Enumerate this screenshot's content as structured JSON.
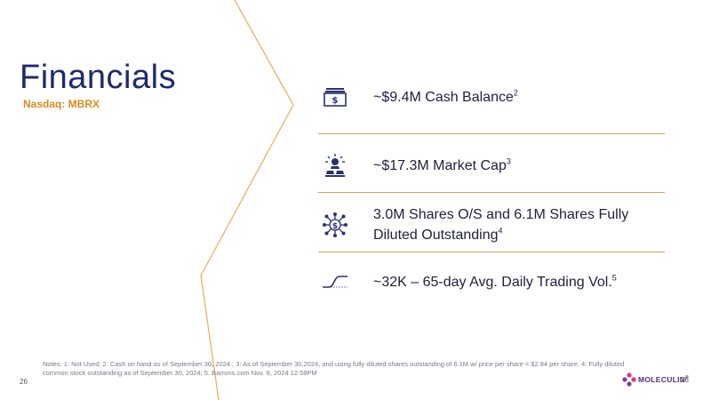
{
  "slide": {
    "title": "Financials",
    "subtitle": "Nasdaq: MBRX",
    "page_number": "26",
    "page_number_right": "26"
  },
  "metrics": [
    {
      "icon": "cash-icon",
      "text": "~$9.4M Cash Balance",
      "footnote": "2"
    },
    {
      "icon": "gold-bars-icon",
      "text": "~$17.3M Market Cap",
      "footnote": "3"
    },
    {
      "icon": "network-dollar-icon",
      "text_line1": "3.0M Shares O/S and 6.1M Shares Fully",
      "text_line2": "Diluted Outstanding",
      "footnote": "4"
    },
    {
      "icon": "trend-curve-icon",
      "text": "~32K – 65-day Avg. Daily Trading Vol.",
      "footnote": "5"
    }
  ],
  "notes": "Notes: 1: Not Used; 2: Cash on hand as of  September 30, 2024 ; 3: As of September 30,2024, and using fully diluted shares outstanding of 6.1M w/ price per share = $2.84 per share; 4: Fully diluted common stock outstanding as of September 30, 2024; 5. Barrons.com Nov. 8, 2024 12:58PM",
  "logo": {
    "text": "MOLECULIN",
    "trademark": "®"
  },
  "colors": {
    "title": "#1f2a6b",
    "accent": "#d98a1e",
    "divider": "#d7a257",
    "icon": "#2a3170"
  }
}
